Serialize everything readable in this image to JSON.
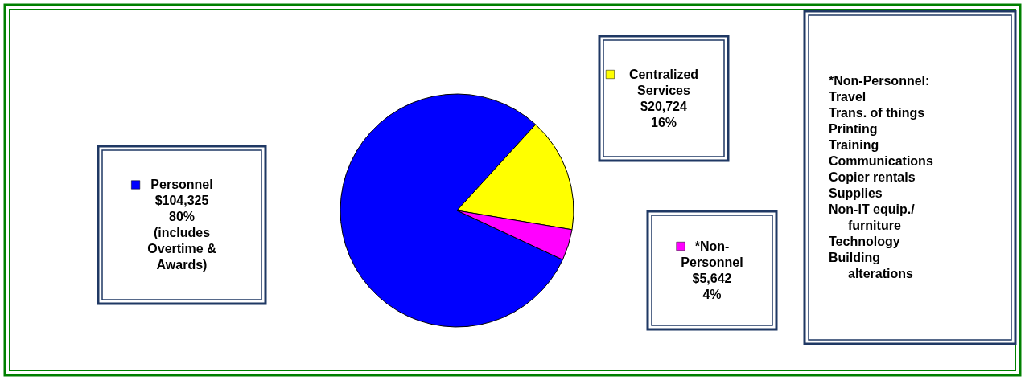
{
  "chart_data": {
    "type": "pie",
    "categories": [
      "Personnel",
      "Centralized Services",
      "*Non-Personnel"
    ],
    "values": [
      104325,
      20724,
      5642
    ],
    "colors": [
      "#0000ff",
      "#ffff00",
      "#ff00ff"
    ],
    "legend": "top left",
    "value_labels": [
      "$104,325\n80%",
      "$20,724\n16%",
      "$5,642\n4%"
    ],
    "annotations": [
      "(includes Overtime & Awards)",
      "*Non-Personnel:\nTravel\nTrans. of things\nPrinting\nTraining\nCommunications\nCopier rentals\nSupplies\nNon-IT equip./ furniture\nTechnology\nBuilding alterations"
    ]
  }
}
